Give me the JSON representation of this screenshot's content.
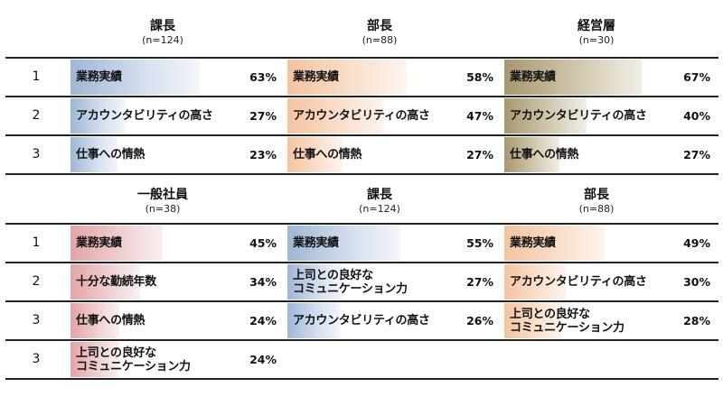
{
  "colors": {
    "blue": "#9fb6d6",
    "orange": "#f4c3a0",
    "olive": "#a89870",
    "red": "#e3a4a6"
  },
  "top": {
    "groups": [
      {
        "title": "課長",
        "n": "(n=124)",
        "color": "blue",
        "rows": [
          {
            "rank": "1",
            "label": "業務実績",
            "pct": "63%",
            "value": 63
          },
          {
            "rank": "2",
            "label": "アカウンタビリティの高さ",
            "pct": "27%",
            "value": 27
          },
          {
            "rank": "3",
            "label": "仕事への情熱",
            "pct": "23%",
            "value": 23
          }
        ]
      },
      {
        "title": "部長",
        "n": "(n=88)",
        "color": "orange",
        "rows": [
          {
            "label": "業務実績",
            "pct": "58%",
            "value": 58
          },
          {
            "label": "アカウンタビリティの高さ",
            "pct": "47%",
            "value": 47
          },
          {
            "label": "仕事への情熱",
            "pct": "27%",
            "value": 27
          }
        ]
      },
      {
        "title": "経営層",
        "n": "(n=30)",
        "color": "olive",
        "rows": [
          {
            "label": "業務実績",
            "pct": "67%",
            "value": 67
          },
          {
            "label": "アカウンタビリティの高さ",
            "pct": "40%",
            "value": 40
          },
          {
            "label": "仕事への情熱",
            "pct": "27%",
            "value": 27
          }
        ]
      }
    ],
    "ranks": [
      "1",
      "2",
      "3"
    ]
  },
  "bottom": {
    "groups": [
      {
        "title": "一般社員",
        "n": "(n=38)",
        "color": "red",
        "rows": [
          {
            "label": "業務実績",
            "pct": "45%",
            "value": 45
          },
          {
            "label": "十分な勤続年数",
            "pct": "34%",
            "value": 34
          },
          {
            "label": "仕事への情熱",
            "pct": "24%",
            "value": 24
          },
          {
            "label": "上司との良好な\nコミュニケーション力",
            "pct": "24%",
            "value": 24
          }
        ]
      },
      {
        "title": "課長",
        "n": "(n=124)",
        "color": "blue",
        "rows": [
          {
            "label": "業務実績",
            "pct": "55%",
            "value": 55
          },
          {
            "label": "上司との良好な\nコミュニケーション力",
            "pct": "27%",
            "value": 27
          },
          {
            "label": "アカウンタビリティの高さ",
            "pct": "26%",
            "value": 26
          }
        ]
      },
      {
        "title": "部長",
        "n": "(n=88)",
        "color": "orange",
        "rows": [
          {
            "label": "業務実績",
            "pct": "49%",
            "value": 49
          },
          {
            "label": "アカウンタビリティの高さ",
            "pct": "30%",
            "value": 30
          },
          {
            "label": "上司との良好な\nコミュニケーション力",
            "pct": "28%",
            "value": 28
          }
        ]
      }
    ],
    "ranks": [
      "1",
      "2",
      "3",
      "3"
    ]
  }
}
